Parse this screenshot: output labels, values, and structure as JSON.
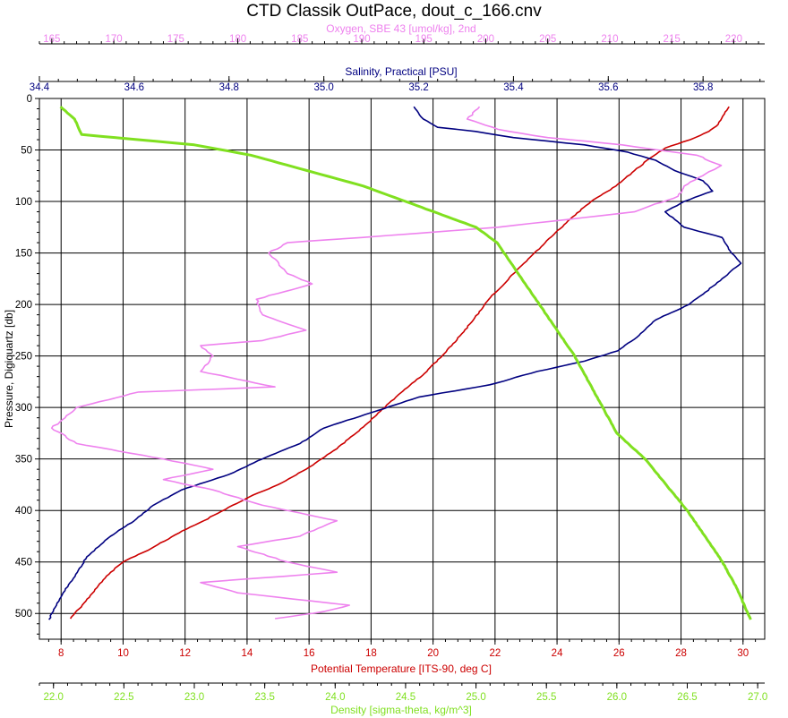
{
  "chart_data": {
    "type": "line",
    "title": "CTD Classik OutPace, dout_c_166.cnv",
    "grid": true,
    "y_axis": {
      "label": "Pressure, Digiquartz [db]",
      "range": [
        0,
        525
      ],
      "inverted": true,
      "ticks": [
        "0",
        "50",
        "100",
        "150",
        "200",
        "250",
        "300",
        "350",
        "400",
        "450",
        "500"
      ]
    },
    "x_axes": [
      {
        "id": "oxygen",
        "label": "Oxygen, SBE 43 [umol/kg], 2nd",
        "position": "top-outer",
        "color": "#ee82ee",
        "range": [
          164,
          222.5
        ],
        "ticks": [
          "165",
          "170",
          "175",
          "180",
          "185",
          "190",
          "195",
          "200",
          "205",
          "210",
          "215",
          "220"
        ]
      },
      {
        "id": "salinity",
        "label": "Salinity, Practical [PSU]",
        "position": "top-inner",
        "color": "#000080",
        "range": [
          34.4,
          35.93
        ],
        "ticks": [
          "34.4",
          "34.6",
          "34.8",
          "35.0",
          "35.2",
          "35.4",
          "35.6",
          "35.8"
        ]
      },
      {
        "id": "temperature",
        "label": "Potential Temperature [ITS-90, deg C]",
        "position": "bottom-inner",
        "color": "#cc0000",
        "range": [
          7.3,
          30.7
        ],
        "ticks": [
          "8",
          "10",
          "12",
          "14",
          "16",
          "18",
          "20",
          "22",
          "24",
          "26",
          "28",
          "30"
        ]
      },
      {
        "id": "density",
        "label": "Density [sigma-theta, kg/m^3]",
        "position": "bottom-outer",
        "color": "#80e020",
        "range": [
          21.9,
          27.05
        ],
        "ticks": [
          "22.0",
          "22.5",
          "23.0",
          "23.5",
          "24.0",
          "24.5",
          "25.0",
          "25.5",
          "26.0",
          "26.5",
          "27.0"
        ]
      }
    ],
    "series": [
      {
        "axis": "temperature",
        "color": "#cc0000",
        "points": [
          [
            29.55,
            8
          ],
          [
            29.4,
            15
          ],
          [
            29.2,
            25
          ],
          [
            28.9,
            32
          ],
          [
            28.3,
            40
          ],
          [
            27.5,
            48
          ],
          [
            27.0,
            58
          ],
          [
            26.5,
            70
          ],
          [
            25.9,
            85
          ],
          [
            25.1,
            100
          ],
          [
            24.5,
            115
          ],
          [
            23.9,
            132
          ],
          [
            23.2,
            152
          ],
          [
            22.6,
            170
          ],
          [
            21.8,
            195
          ],
          [
            21.3,
            215
          ],
          [
            20.6,
            240
          ],
          [
            19.8,
            265
          ],
          [
            18.8,
            290
          ],
          [
            17.9,
            315
          ],
          [
            16.9,
            340
          ],
          [
            15.9,
            360
          ],
          [
            15.0,
            375
          ],
          [
            14.2,
            385
          ],
          [
            13.4,
            397
          ],
          [
            12.6,
            410
          ],
          [
            11.9,
            420
          ],
          [
            10.9,
            437
          ],
          [
            10.0,
            450
          ],
          [
            9.6,
            460
          ],
          [
            9.2,
            473
          ],
          [
            8.8,
            488
          ],
          [
            8.3,
            505
          ]
        ]
      },
      {
        "axis": "salinity",
        "color": "#000080",
        "points": [
          [
            35.19,
            8
          ],
          [
            35.21,
            20
          ],
          [
            35.24,
            28
          ],
          [
            35.32,
            32
          ],
          [
            35.4,
            38
          ],
          [
            35.55,
            45
          ],
          [
            35.64,
            52
          ],
          [
            35.7,
            60
          ],
          [
            35.74,
            70
          ],
          [
            35.8,
            80
          ],
          [
            35.82,
            90
          ],
          [
            35.76,
            100
          ],
          [
            35.72,
            110
          ],
          [
            35.76,
            125
          ],
          [
            35.84,
            135
          ],
          [
            35.86,
            150
          ],
          [
            35.88,
            160
          ],
          [
            35.84,
            175
          ],
          [
            35.8,
            190
          ],
          [
            35.77,
            200
          ],
          [
            35.7,
            215
          ],
          [
            35.66,
            232
          ],
          [
            35.62,
            245
          ],
          [
            35.55,
            255
          ],
          [
            35.45,
            265
          ],
          [
            35.35,
            278
          ],
          [
            35.2,
            290
          ],
          [
            35.1,
            305
          ],
          [
            35.0,
            320
          ],
          [
            34.95,
            335
          ],
          [
            34.87,
            350
          ],
          [
            34.8,
            365
          ],
          [
            34.7,
            380
          ],
          [
            34.64,
            395
          ],
          [
            34.6,
            410
          ],
          [
            34.55,
            425
          ],
          [
            34.5,
            445
          ],
          [
            34.48,
            460
          ],
          [
            34.45,
            480
          ],
          [
            34.42,
            506
          ]
        ]
      },
      {
        "axis": "oxygen",
        "color": "#ee82ee",
        "points": [
          [
            199.5,
            8
          ],
          [
            198.5,
            20
          ],
          [
            201,
            30
          ],
          [
            205,
            38
          ],
          [
            211,
            45
          ],
          [
            217,
            55
          ],
          [
            219,
            65
          ],
          [
            216,
            85
          ],
          [
            215.5,
            95
          ],
          [
            212,
            110
          ],
          [
            201,
            125
          ],
          [
            190,
            135
          ],
          [
            184,
            140
          ],
          [
            182.5,
            150
          ],
          [
            184,
            170
          ],
          [
            186,
            180
          ],
          [
            181.5,
            195
          ],
          [
            182,
            210
          ],
          [
            185.5,
            225
          ],
          [
            182,
            235
          ],
          [
            177,
            240
          ],
          [
            178,
            250
          ],
          [
            177,
            265
          ],
          [
            183,
            280
          ],
          [
            172,
            285
          ],
          [
            167,
            300
          ],
          [
            165,
            320
          ],
          [
            167,
            335
          ],
          [
            174,
            350
          ],
          [
            178,
            360
          ],
          [
            174,
            370
          ],
          [
            178,
            380
          ],
          [
            182,
            395
          ],
          [
            188,
            410
          ],
          [
            185,
            425
          ],
          [
            180,
            435
          ],
          [
            184,
            450
          ],
          [
            188,
            460
          ],
          [
            177,
            470
          ],
          [
            180,
            480
          ],
          [
            189,
            492
          ],
          [
            187,
            498
          ],
          [
            183,
            505
          ]
        ]
      },
      {
        "axis": "density",
        "color": "#80e020",
        "points": [
          [
            22.05,
            8
          ],
          [
            22.15,
            20
          ],
          [
            22.2,
            35
          ],
          [
            22.6,
            40
          ],
          [
            23.0,
            45
          ],
          [
            23.4,
            55
          ],
          [
            23.8,
            70
          ],
          [
            24.2,
            85
          ],
          [
            24.5,
            100
          ],
          [
            24.8,
            115
          ],
          [
            25.0,
            125
          ],
          [
            25.15,
            140
          ],
          [
            25.25,
            160
          ],
          [
            25.35,
            180
          ],
          [
            25.45,
            200
          ],
          [
            25.55,
            220
          ],
          [
            25.7,
            250
          ],
          [
            25.8,
            275
          ],
          [
            25.9,
            300
          ],
          [
            26.0,
            325
          ],
          [
            26.2,
            350
          ],
          [
            26.35,
            375
          ],
          [
            26.5,
            400
          ],
          [
            26.65,
            430
          ],
          [
            26.75,
            450
          ],
          [
            26.85,
            475
          ],
          [
            26.95,
            506
          ]
        ]
      }
    ]
  }
}
